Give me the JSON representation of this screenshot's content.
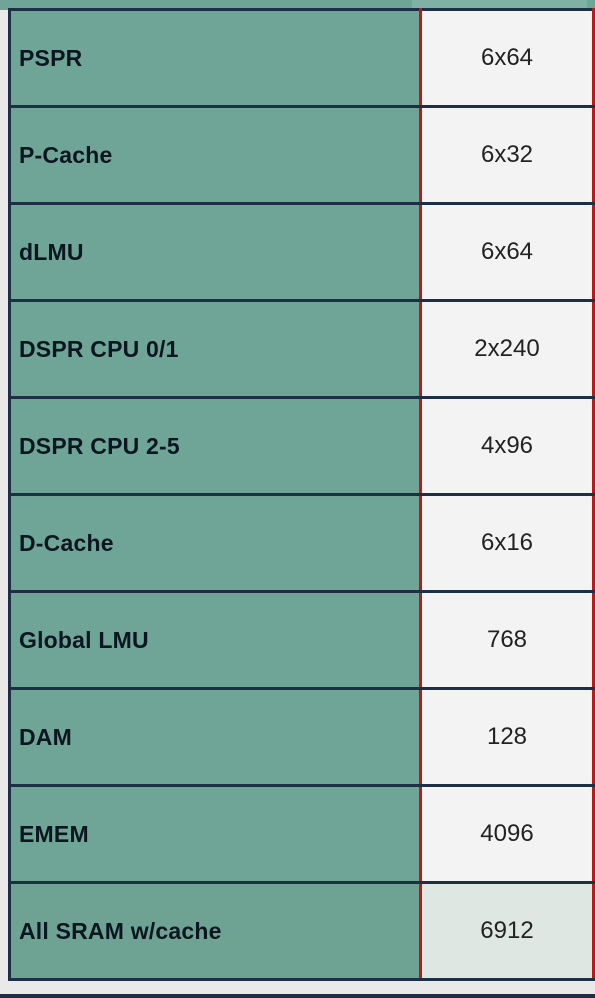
{
  "table": {
    "rows": [
      {
        "label": "PSPR",
        "value": "6x64"
      },
      {
        "label": "P-Cache",
        "value": "6x32"
      },
      {
        "label": "dLMU",
        "value": "6x64"
      },
      {
        "label": "DSPR CPU 0/1",
        "value": "2x240"
      },
      {
        "label": "DSPR CPU 2-5",
        "value": "4x96"
      },
      {
        "label": "D-Cache",
        "value": "6x16"
      },
      {
        "label": "Global LMU",
        "value": "768"
      },
      {
        "label": "DAM",
        "value": "128"
      },
      {
        "label": "EMEM",
        "value": "4096"
      },
      {
        "label": "All SRAM w/cache",
        "value": "6912"
      }
    ]
  },
  "colors": {
    "label_background": "#6fa596",
    "value_background": "#f3f3f3",
    "row_border": "#1c2f45",
    "column_divider": "#c0161b"
  }
}
